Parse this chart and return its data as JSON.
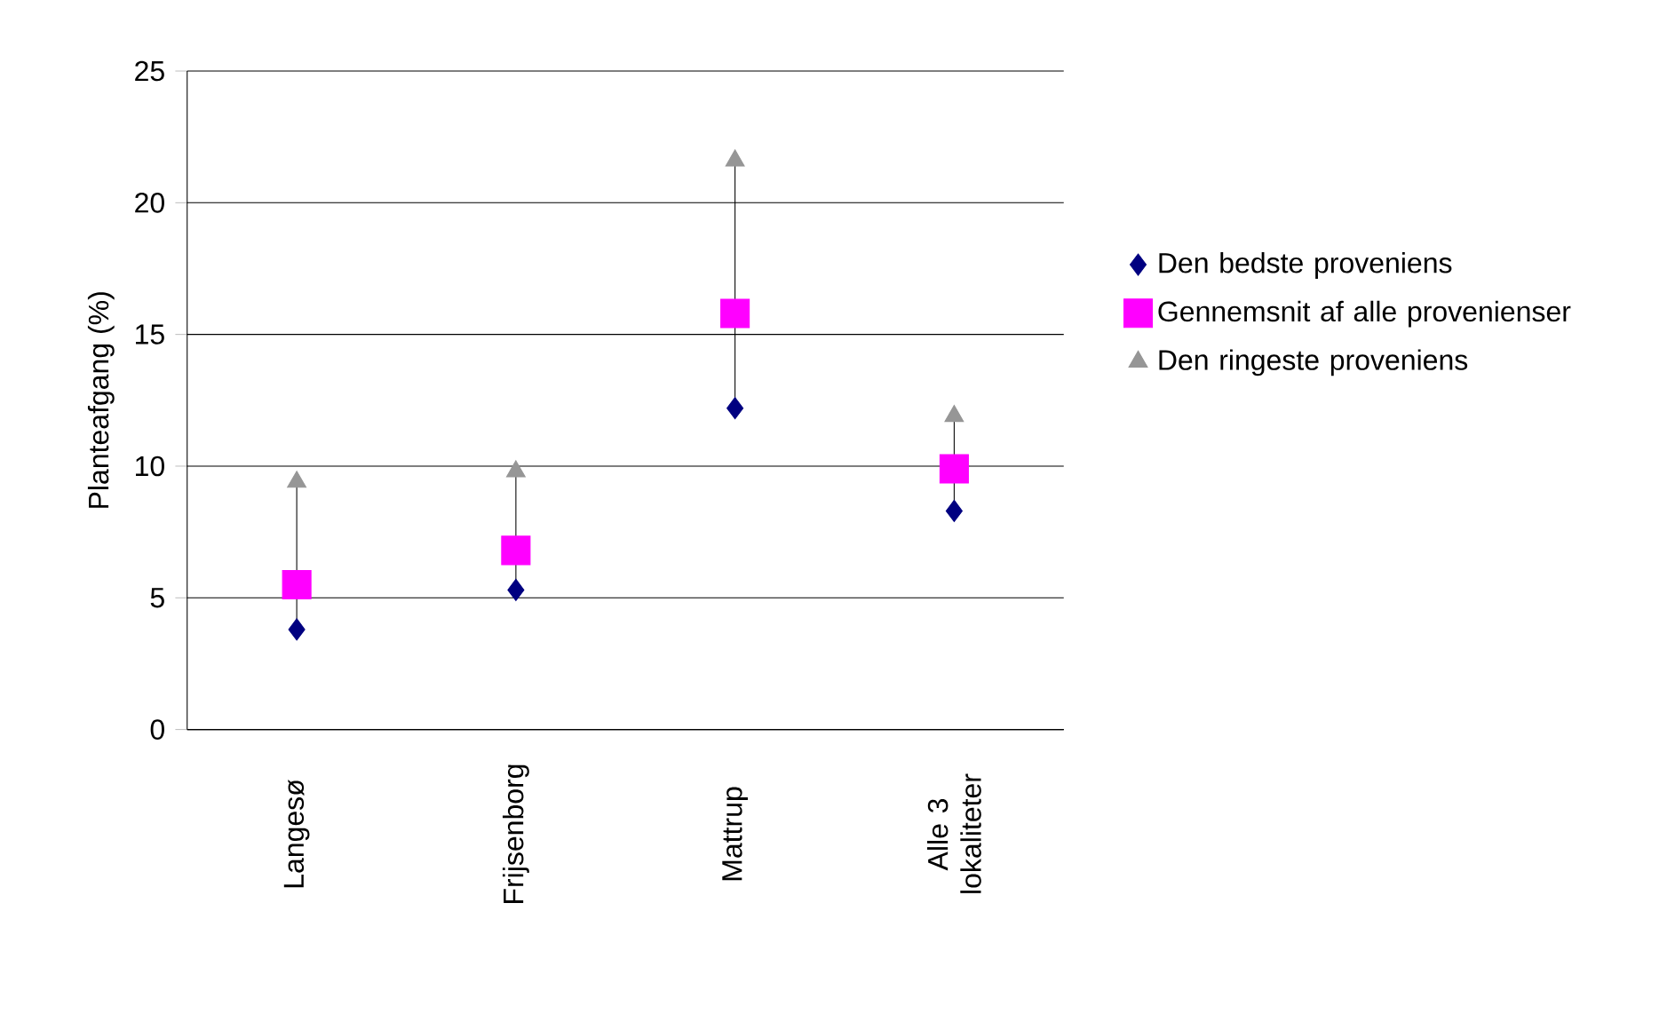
{
  "chart_data": {
    "type": "scatter",
    "ylabel": "Planteafgang (%)",
    "categories": [
      "Langesø",
      "Frijsenborg",
      "Mattrup",
      "Alle 3 lokaliteter"
    ],
    "series": [
      {
        "name": "Den bedste proveniens",
        "color": "#000080",
        "marker": "diamond",
        "values": [
          3.8,
          5.3,
          12.2,
          8.3
        ]
      },
      {
        "name": "Gennemsnit af alle provenienser",
        "color": "#ff00ff",
        "marker": "square",
        "values": [
          5.5,
          6.8,
          15.8,
          9.9
        ]
      },
      {
        "name": "Den ringeste proveniens",
        "color": "#969696",
        "marker": "triangle",
        "values": [
          9.4,
          9.8,
          21.6,
          11.9
        ]
      }
    ],
    "ylim": [
      0,
      25
    ],
    "yticks": [
      0,
      5,
      10,
      15,
      20,
      25
    ],
    "grid": "y",
    "legend": "right"
  }
}
